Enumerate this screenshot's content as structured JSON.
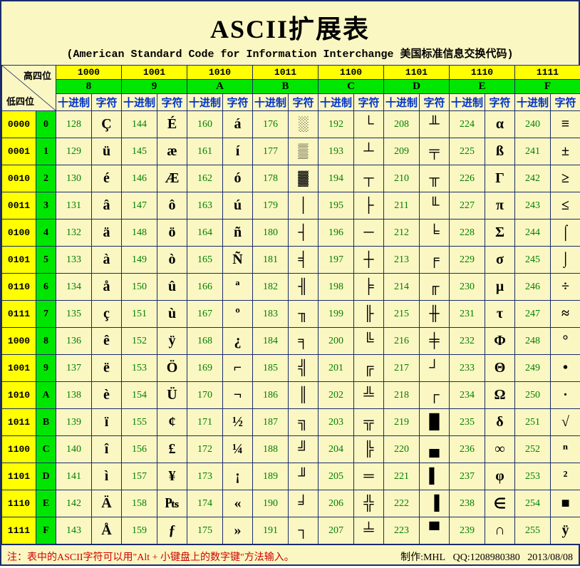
{
  "title": "ASCII扩展表",
  "subtitle": "(American Standard Code for Information Interchange  美国标准信息交换代码)",
  "colors": {
    "bg": "#fbf7c2",
    "yellow": "#ffff00",
    "green": "#00e600",
    "border": "#1a2b6d",
    "blue": "#0033cc",
    "textgreen": "#008000",
    "red": "#cc0000"
  },
  "corner": {
    "high": "高四位",
    "low": "低四位"
  },
  "col_headers": {
    "dec": "十进制",
    "chr": "字符"
  },
  "col_bin": [
    "1000",
    "1001",
    "1010",
    "1011",
    "1100",
    "1101",
    "1110",
    "1111"
  ],
  "col_hex": [
    "8",
    "9",
    "A",
    "B",
    "C",
    "D",
    "E",
    "F"
  ],
  "row_bin": [
    "0000",
    "0001",
    "0010",
    "0011",
    "0100",
    "0101",
    "0110",
    "0111",
    "1000",
    "1001",
    "1010",
    "1011",
    "1100",
    "1101",
    "1110",
    "1111"
  ],
  "row_hex": [
    "0",
    "1",
    "2",
    "3",
    "4",
    "5",
    "6",
    "7",
    "8",
    "9",
    "A",
    "B",
    "C",
    "D",
    "E",
    "F"
  ],
  "dec_start": [
    128,
    144,
    160,
    176,
    192,
    208,
    224,
    240
  ],
  "chars": [
    [
      "Ç",
      "É",
      "á",
      "░",
      "└",
      "╨",
      "α",
      "≡"
    ],
    [
      "ü",
      "æ",
      "í",
      "▒",
      "┴",
      "╤",
      "ß",
      "±"
    ],
    [
      "é",
      "Æ",
      "ó",
      "▓",
      "┬",
      "╥",
      "Γ",
      "≥"
    ],
    [
      "â",
      "ô",
      "ú",
      "│",
      "├",
      "╙",
      "π",
      "≤"
    ],
    [
      "ä",
      "ö",
      "ñ",
      "┤",
      "─",
      "╘",
      "Σ",
      "⌠"
    ],
    [
      "à",
      "ò",
      "Ñ",
      "╡",
      "┼",
      "╒",
      "σ",
      "⌡"
    ],
    [
      "å",
      "û",
      "ª",
      "╢",
      "╞",
      "╓",
      "μ",
      "÷"
    ],
    [
      "ç",
      "ù",
      "º",
      "╖",
      "╟",
      "╫",
      "τ",
      "≈"
    ],
    [
      "ê",
      "ÿ",
      "¿",
      "╕",
      "╚",
      "╪",
      "Φ",
      "°"
    ],
    [
      "ë",
      "Ö",
      "⌐",
      "╣",
      "╔",
      "┘",
      "Θ",
      "•"
    ],
    [
      "è",
      "Ü",
      "¬",
      "║",
      "╩",
      "┌",
      "Ω",
      "·"
    ],
    [
      "ï",
      "¢",
      "½",
      "╗",
      "╦",
      "█",
      "δ",
      "√"
    ],
    [
      "î",
      "£",
      "¼",
      "╝",
      "╠",
      "▄",
      "∞",
      "ⁿ"
    ],
    [
      "ì",
      "¥",
      "¡",
      "╜",
      "═",
      "▌",
      "φ",
      "²"
    ],
    [
      "Ä",
      "₧",
      "«",
      "╛",
      "╬",
      "▐",
      "∈",
      "■"
    ],
    [
      "Å",
      "ƒ",
      "»",
      "┐",
      "╧",
      "▀",
      "∩",
      "ÿ"
    ]
  ],
  "footer": {
    "note": "注：表中的ASCII字符可以用\"Alt + 小键盘上的数字键\"方法输入。",
    "author": "制作:MHL",
    "qq": "QQ:1208980380",
    "date": "2013/08/08"
  }
}
